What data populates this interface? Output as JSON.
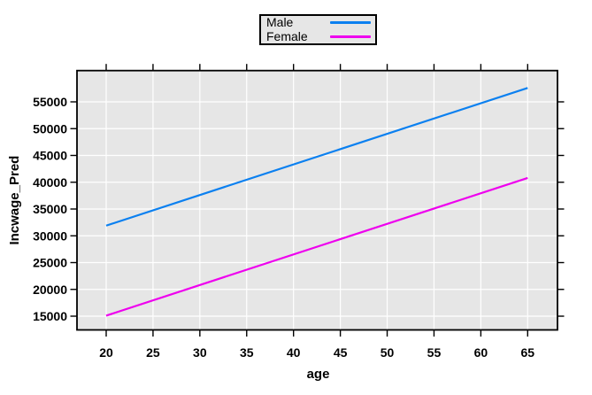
{
  "figure": {
    "background": "#ffffff",
    "panel_background": "#e6e6e6",
    "gridline_color": "#ffffff",
    "border_color": "#000000"
  },
  "legend": {
    "items": [
      {
        "label": "Male",
        "color": "#0b80f0"
      },
      {
        "label": "Female",
        "color": "#ee00ee"
      }
    ]
  },
  "chart_data": {
    "type": "line",
    "title": "",
    "xlabel": "age",
    "ylabel": "Incwage_Pred",
    "x_ticks": [
      20,
      25,
      30,
      35,
      40,
      45,
      50,
      55,
      60,
      65
    ],
    "y_ticks": [
      15000,
      20000,
      25000,
      30000,
      35000,
      40000,
      45000,
      50000,
      55000
    ],
    "xlim": [
      16.9,
      68.2
    ],
    "ylim": [
      12600,
      60700
    ],
    "grid": true,
    "legend_position": "top-center-outside",
    "series": [
      {
        "name": "Male",
        "color": "#0b80f0",
        "x": [
          20,
          65
        ],
        "y": [
          31900,
          57600
        ]
      },
      {
        "name": "Female",
        "color": "#ee00ee",
        "x": [
          20,
          65
        ],
        "y": [
          15100,
          40800
        ]
      }
    ]
  }
}
